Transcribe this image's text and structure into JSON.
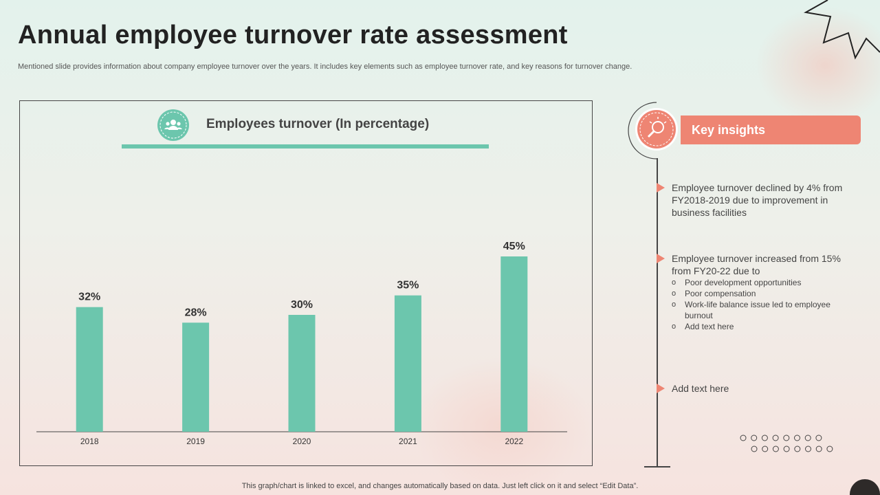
{
  "slide": {
    "title": "Annual employee turnover rate assessment",
    "subtitle": "Mentioned slide provides information about company employee turnover over the years. It includes key elements such as employee turnover rate, and key reasons for turnover change.",
    "footer_note": "This graph/chart is linked to excel,  and changes automatically based on data. Just left click on it and select “Edit Data”."
  },
  "chart_data": {
    "type": "bar",
    "title": "Employees turnover (In percentage)",
    "categories": [
      "2018",
      "2019",
      "2020",
      "2021",
      "2022"
    ],
    "values": [
      32,
      28,
      30,
      35,
      45
    ],
    "data_labels": [
      "32%",
      "28%",
      "30%",
      "35%",
      "45%"
    ],
    "xlabel": "",
    "ylabel": "",
    "ylim": [
      0,
      50
    ],
    "grid": false,
    "legend": "none",
    "bar_color": "#6cc6ad"
  },
  "insights": {
    "header": "Key insights",
    "items": [
      "Employee turnover declined by 4% from FY2018-2019 due to improvement in business facilities",
      "Employee turnover increased from 15% from FY20-22 due to",
      "Add text here"
    ],
    "sub_bullet_symbol": "o",
    "sub_items": [
      "Poor development  opportunities",
      "Poor compensation",
      "Work-life balance issue led to employee burnout",
      "Add text here"
    ]
  },
  "colors": {
    "accent": "#ee8573",
    "teal": "#6cc6ad",
    "text": "#333333"
  },
  "icons": [
    "people-group-icon",
    "lightbulb-search-icon",
    "burst-outline-icon"
  ]
}
